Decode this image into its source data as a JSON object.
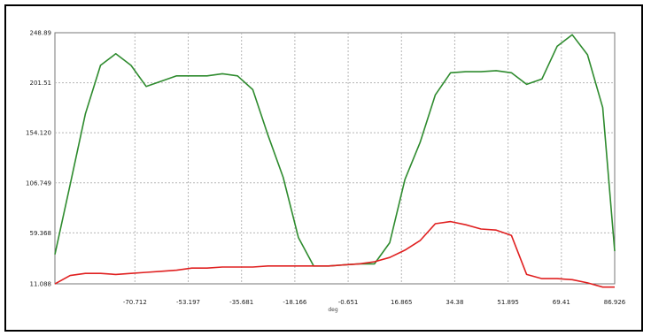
{
  "chart_data": {
    "type": "line",
    "title": "",
    "xlabel": "deg",
    "ylabel": "",
    "xlim": [
      -97.0,
      86.926
    ],
    "ylim": [
      11.088,
      248.89
    ],
    "grid": true,
    "legend": "none",
    "x_ticks": [
      "-70.712",
      "-53.197",
      "-35.681",
      "-18.166",
      "-0.651",
      "16.865",
      "34.38",
      "51.895",
      "69.41",
      "86.926"
    ],
    "y_ticks": [
      "248.89",
      "201.51",
      "154.120",
      "106.749",
      "59.368",
      "11.088"
    ],
    "series": [
      {
        "color": "#2e8b2e",
        "x": [
          -97.0,
          -92.0,
          -87.0,
          -82.0,
          -77.0,
          -72.0,
          -67.0,
          -62.0,
          -57.0,
          -52.0,
          -47.0,
          -42.0,
          -37.0,
          -32.0,
          -27.0,
          -22.0,
          -17.0,
          -12.0,
          -7.0,
          -2.0,
          3.0,
          8.0,
          13.0,
          18.0,
          23.0,
          28.0,
          33.0,
          38.0,
          43.0,
          48.0,
          53.0,
          58.0,
          63.0,
          68.0,
          73.0,
          78.0,
          83.0,
          86.926
        ],
        "values": [
          39.0,
          105.0,
          172.0,
          218.0,
          229.0,
          218.0,
          198.0,
          203.0,
          208.0,
          208.0,
          208.0,
          210.0,
          208.0,
          195.0,
          152.0,
          112.0,
          55.0,
          28.0,
          28.0,
          29.0,
          30.0,
          30.0,
          50.0,
          110.0,
          145.0,
          190.0,
          211.0,
          212.0,
          212.0,
          213.0,
          211.0,
          200.0,
          205.0,
          236.0,
          247.0,
          228.0,
          178.0,
          42.0
        ]
      },
      {
        "color": "#e02020",
        "x": [
          -97.0,
          -92.0,
          -87.0,
          -82.0,
          -77.0,
          -72.0,
          -67.0,
          -62.0,
          -57.0,
          -52.0,
          -47.0,
          -42.0,
          -37.0,
          -32.0,
          -27.0,
          -22.0,
          -17.0,
          -12.0,
          -7.0,
          -2.0,
          3.0,
          8.0,
          13.0,
          18.0,
          23.0,
          28.0,
          33.0,
          38.0,
          43.0,
          48.0,
          53.0,
          58.0,
          63.0,
          68.0,
          73.0,
          78.0,
          83.0,
          86.926
        ],
        "values": [
          11.0,
          19.0,
          21.0,
          21.0,
          20.0,
          21.0,
          22.0,
          23.0,
          24.0,
          26.0,
          26.0,
          27.0,
          27.0,
          27.0,
          28.0,
          28.0,
          28.0,
          28.0,
          28.0,
          29.0,
          30.0,
          32.0,
          36.0,
          43.0,
          52.0,
          68.0,
          70.0,
          67.0,
          63.0,
          62.0,
          57.0,
          20.0,
          16.0,
          16.0,
          15.0,
          12.0,
          8.0,
          8.0
        ]
      }
    ]
  }
}
